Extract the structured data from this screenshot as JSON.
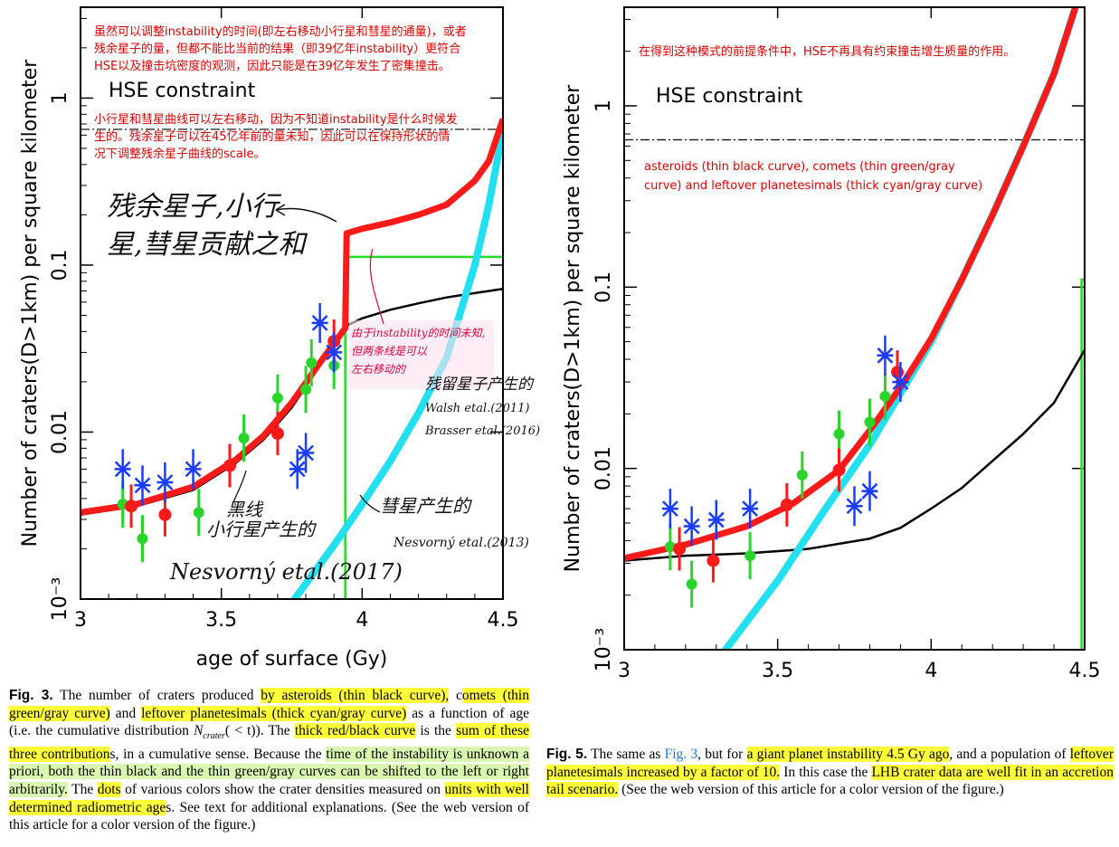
{
  "chart_data": [
    {
      "type": "scatter",
      "title": "",
      "xlabel": "age of surface (Gy)",
      "ylabel": "Number of craters(D>1km) per square kilometer",
      "xlim": [
        3,
        4.5
      ],
      "ylim": [
        0.001,
        3.5
      ],
      "yscale": "log",
      "x_ticks": [
        "3",
        "3.5",
        "4",
        "4.5"
      ],
      "y_ticks": [
        "10⁻³",
        "0.01",
        "0.1",
        "1"
      ],
      "hse_label": "HSE constraint",
      "hse_value": 0.65,
      "series": [
        {
          "name": "asteroids (thin black curve)",
          "color": "#000000",
          "points": [
            [
              3.0,
              0.0032
            ],
            [
              3.2,
              0.0036
            ],
            [
              3.4,
              0.0045
            ],
            [
              3.55,
              0.0065
            ],
            [
              3.65,
              0.009
            ],
            [
              3.75,
              0.014
            ],
            [
              3.85,
              0.025
            ],
            [
              3.92,
              0.038
            ],
            [
              3.94,
              0.043
            ],
            [
              4.0,
              0.048
            ],
            [
              4.1,
              0.054
            ],
            [
              4.2,
              0.059
            ],
            [
              4.3,
              0.064
            ],
            [
              4.4,
              0.068
            ],
            [
              4.5,
              0.072
            ]
          ]
        },
        {
          "name": "comets (thin green/gray curve)",
          "color": "#22dd22",
          "step_at": 3.94,
          "plateau": 0.112
        },
        {
          "name": "leftover planetesimals (thick cyan/gray curve)",
          "color": "#22e0f0",
          "points": [
            [
              3.76,
              0.001
            ],
            [
              3.9,
              0.0021
            ],
            [
              4.0,
              0.0037
            ],
            [
              4.1,
              0.0067
            ],
            [
              4.2,
              0.013
            ],
            [
              4.3,
              0.028
            ],
            [
              4.4,
              0.1
            ],
            [
              4.45,
              0.23
            ],
            [
              4.5,
              0.65
            ]
          ]
        },
        {
          "name": "sum (thick red/black curve)",
          "color": "#ff1a1a",
          "points": [
            [
              3.0,
              0.0033
            ],
            [
              3.2,
              0.0037
            ],
            [
              3.4,
              0.0047
            ],
            [
              3.55,
              0.0068
            ],
            [
              3.65,
              0.0095
            ],
            [
              3.75,
              0.015
            ],
            [
              3.85,
              0.026
            ],
            [
              3.94,
              0.042
            ],
            [
              3.945,
              0.155
            ],
            [
              4.0,
              0.165
            ],
            [
              4.1,
              0.18
            ],
            [
              4.2,
              0.2
            ],
            [
              4.3,
              0.23
            ],
            [
              4.4,
              0.32
            ],
            [
              4.45,
              0.42
            ],
            [
              4.5,
              0.75
            ]
          ]
        }
      ],
      "dots": {
        "blue": [
          [
            3.15,
            0.006
          ],
          [
            3.22,
            0.0048
          ],
          [
            3.3,
            0.005
          ],
          [
            3.4,
            0.006
          ],
          [
            3.8,
            0.0075
          ],
          [
            3.77,
            0.006
          ],
          [
            3.85,
            0.045
          ],
          [
            3.9,
            0.03
          ]
        ],
        "green": [
          [
            3.15,
            0.0037
          ],
          [
            3.22,
            0.0023
          ],
          [
            3.42,
            0.0033
          ],
          [
            3.58,
            0.0092
          ],
          [
            3.7,
            0.016
          ],
          [
            3.82,
            0.026
          ],
          [
            3.8,
            0.018
          ],
          [
            3.9,
            0.025
          ]
        ],
        "red": [
          [
            3.18,
            0.0036
          ],
          [
            3.3,
            0.0032
          ],
          [
            3.53,
            0.0063
          ],
          [
            3.7,
            0.0098
          ],
          [
            3.9,
            0.035
          ]
        ]
      },
      "notes": {
        "top": [
          "虽然可以调整instability的时间(即左右移动小行星和彗星的通量)，或者",
          "残余星子的量，但都不能比当前的结果（即39亿年instability）更符合",
          "HSE以及撞击坑密度的观测，因此只能是在39亿年发生了密集撞击。"
        ],
        "middle": [
          "小行星和彗星曲线可以左右移动，因为不知道instability是什么时候发",
          "生的。残余星子可以在45亿年前的量未知，因此可以在保持形状的情",
          "况下调整残余星子曲线的scale。"
        ],
        "hand_sum": [
          "残余星子,小行",
          "星,彗星贡献之和"
        ],
        "hand_shift": [
          "由于instability的时间未知,",
          "但两条线是可以",
          "左右移动的"
        ],
        "hand_leftover": [
          "残留星子产生的",
          "Walsh etal.(2011)",
          "Brasser etal.(2016)"
        ],
        "hand_black": [
          "黑线",
          "小行星产生的",
          "Nesvorný etal.(2017)"
        ],
        "hand_comet": [
          "彗星产生的",
          "Nesvorný etal.(2013)"
        ]
      }
    },
    {
      "type": "scatter",
      "title": "",
      "xlabel": "age of surface (Gy)",
      "ylabel": "Number of craters(D>1km) per square kilometer",
      "xlim": [
        3,
        4.5
      ],
      "ylim": [
        0.001,
        3.5
      ],
      "yscale": "log",
      "x_ticks": [
        "3",
        "3.5",
        "4",
        "4.5"
      ],
      "y_ticks": [
        "10⁻³",
        "0.01",
        "0.1",
        "1"
      ],
      "hse_label": "HSE constraint",
      "hse_value": 0.65,
      "series": [
        {
          "name": "asteroids (thin black curve)",
          "color": "#000000",
          "points": [
            [
              3.0,
              0.0031
            ],
            [
              3.2,
              0.0033
            ],
            [
              3.4,
              0.0034
            ],
            [
              3.6,
              0.0036
            ],
            [
              3.8,
              0.0041
            ],
            [
              3.9,
              0.0047
            ],
            [
              4.0,
              0.006
            ],
            [
              4.1,
              0.0078
            ],
            [
              4.2,
              0.011
            ],
            [
              4.3,
              0.0155
            ],
            [
              4.4,
              0.023
            ],
            [
              4.5,
              0.045
            ]
          ]
        },
        {
          "name": "comets (thin green/gray curve)",
          "color": "#22dd22",
          "step_at": 4.49,
          "plateau": 0.11
        },
        {
          "name": "leftover planetesimals (thick cyan/gray curve)",
          "color": "#22e0f0",
          "points": [
            [
              3.33,
              0.001
            ],
            [
              3.5,
              0.0024
            ],
            [
              3.65,
              0.0058
            ],
            [
              3.8,
              0.0135
            ],
            [
              3.9,
              0.026
            ],
            [
              4.0,
              0.05
            ],
            [
              4.1,
              0.11
            ],
            [
              4.2,
              0.25
            ],
            [
              4.3,
              0.6
            ],
            [
              4.4,
              1.5
            ],
            [
              4.47,
              3.5
            ]
          ]
        },
        {
          "name": "sum (thick red/black curve)",
          "color": "#ff1a1a",
          "points": [
            [
              3.0,
              0.0032
            ],
            [
              3.2,
              0.0038
            ],
            [
              3.4,
              0.0048
            ],
            [
              3.55,
              0.0064
            ],
            [
              3.7,
              0.0098
            ],
            [
              3.8,
              0.0162
            ],
            [
              3.9,
              0.028
            ],
            [
              4.0,
              0.052
            ],
            [
              4.1,
              0.11
            ],
            [
              4.2,
              0.25
            ],
            [
              4.3,
              0.6
            ],
            [
              4.4,
              1.5
            ],
            [
              4.47,
              3.5
            ]
          ]
        }
      ],
      "dots": {
        "blue": [
          [
            3.15,
            0.006
          ],
          [
            3.22,
            0.0048
          ],
          [
            3.3,
            0.0052
          ],
          [
            3.41,
            0.006
          ],
          [
            3.75,
            0.0062
          ],
          [
            3.8,
            0.0075
          ],
          [
            3.85,
            0.042
          ],
          [
            3.9,
            0.03
          ]
        ],
        "green": [
          [
            3.15,
            0.0037
          ],
          [
            3.22,
            0.0023
          ],
          [
            3.41,
            0.0033
          ],
          [
            3.58,
            0.0092
          ],
          [
            3.7,
            0.0155
          ],
          [
            3.8,
            0.018
          ],
          [
            3.85,
            0.025
          ]
        ],
        "red": [
          [
            3.18,
            0.0036
          ],
          [
            3.29,
            0.0031
          ],
          [
            3.53,
            0.0063
          ],
          [
            3.7,
            0.0098
          ],
          [
            3.89,
            0.034
          ]
        ]
      },
      "notes": {
        "top": [
          "在得到这种模式的前提条件中，HSE不再具有约束撞击增生质量的作用。"
        ],
        "legend": [
          "asteroids (thin black curve), comets (thin green/gray",
          "curve) and leftover planetesimals (thick cyan/gray curve)"
        ]
      }
    }
  ],
  "captions": {
    "fig3": {
      "label": "Fig. 3.",
      "t1": " The number of craters produced ",
      "h1": "by asteroids (thin black curve),",
      "t2": " c",
      "h2": "omets (thin green/gray curve)",
      "t3": " and ",
      "h3": "leftover planetesimals (thick cyan/gray curve)",
      "t4": " as a function of age (i.e. the cumulative distribution ",
      "ncrater": "N",
      "ncrater_sub": "crater",
      "t5": "( < t)). The ",
      "h4": "thick red/black curve",
      "t6": " is the ",
      "h5": "sum of these three contribution",
      "t7": "s, in a cumulative sense. Because the ",
      "h6": "time of the instability is unknown a priori, both the thin black and the thin green/gray curves can be shifted to the left or right arbitrarily.",
      "t8": " The ",
      "h7": "dots",
      "t9": " of various colors show the crater densities measured on ",
      "h8": "units with well determined radiometric age",
      "t10": "s. See text for additional explanations. (See the web version of this article for a color version of the figure.)"
    },
    "fig5": {
      "label": "Fig. 5.",
      "t1": " The same as ",
      "link": "Fig. 3",
      "t2": ", but for ",
      "h1": "a giant planet instability 4.5 Gy ago",
      "t3": ", and a population of ",
      "h2": "leftover planetesimals increased by a factor of 10.",
      "t4": " In this case the ",
      "h3": "LHB crater data are well fit in an accretion tail scenario.",
      "t5": " (See the web version of this article for a color version of the figure.)"
    }
  }
}
